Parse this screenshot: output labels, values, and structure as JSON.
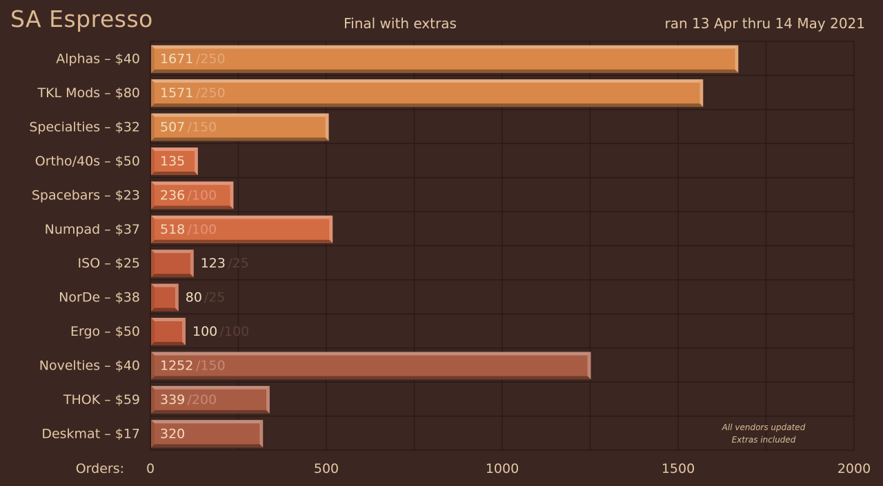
{
  "header": {
    "title": "SA Espresso",
    "subtitle": "Final with extras",
    "date_range": "ran 13 Apr thru 14 May 2021"
  },
  "note": {
    "line1": "All vendors updated",
    "line2": "Extras included"
  },
  "chart_data": {
    "type": "bar",
    "orientation": "horizontal",
    "title": "SA Espresso",
    "subtitle": "Final with extras",
    "xlabel": "Orders:",
    "xlim": [
      0,
      2000
    ],
    "xticks": [
      0,
      500,
      1000,
      1500,
      2000
    ],
    "grid": true,
    "categories": [
      "Alphas – $40",
      "TKL Mods – $80",
      "Specialties – $32",
      "Ortho/40s – $50",
      "Spacebars – $23",
      "Numpad – $37",
      "ISO – $25",
      "NorDe – $38",
      "Ergo – $50",
      "Novelties – $40",
      "THOK – $59",
      "Deskmat – $17"
    ],
    "values": [
      1671,
      1571,
      507,
      135,
      236,
      518,
      123,
      80,
      100,
      1252,
      339,
      320
    ],
    "minimums": [
      250,
      250,
      150,
      null,
      100,
      100,
      25,
      25,
      100,
      150,
      200,
      null
    ],
    "colors": [
      "#d9884a",
      "#d9884a",
      "#d9884a",
      "#d46c43",
      "#d46c43",
      "#d46c43",
      "#c05a3a",
      "#c05a3a",
      "#c05a3a",
      "#a95c44",
      "#a95c44",
      "#a95c44"
    ]
  }
}
